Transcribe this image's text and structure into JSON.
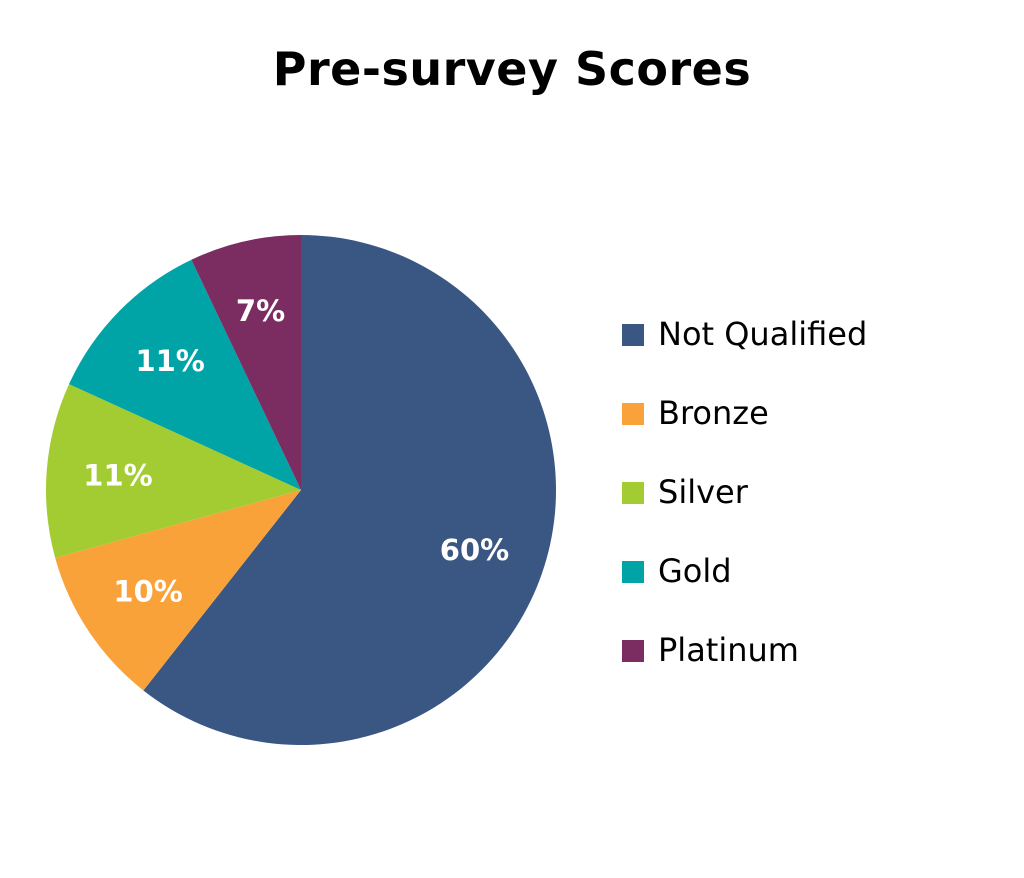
{
  "chart_data": {
    "type": "pie",
    "title": "Pre-survey Scores",
    "categories": [
      "Not Qualified",
      "Bronze",
      "Silver",
      "Gold",
      "Platinum"
    ],
    "values": [
      60,
      10,
      11,
      11,
      7
    ],
    "labels": [
      "60%",
      "10%",
      "11%",
      "11%",
      "7%"
    ],
    "colors": [
      "#3a5784",
      "#f9a23a",
      "#a3cc32",
      "#00a3a6",
      "#7b2d62"
    ],
    "legend_position": "right"
  }
}
